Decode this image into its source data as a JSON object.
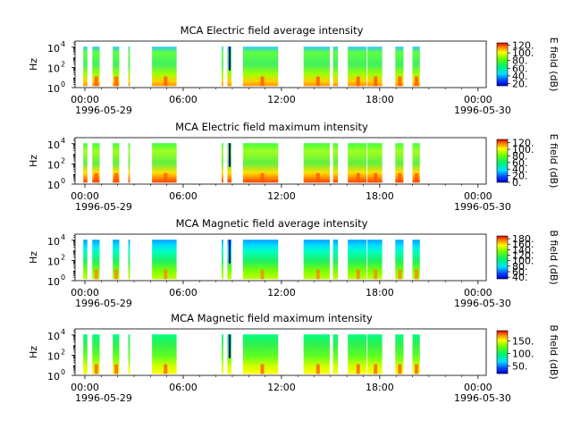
{
  "figure": {
    "x_tick_labels": [
      "00:00",
      "06:00",
      "12:00",
      "18:00",
      "00:00"
    ],
    "x_tick_hours": [
      0,
      6,
      12,
      18,
      24
    ],
    "x_range_hours": [
      -0.6,
      24.5
    ],
    "date_start": "1996-05-29",
    "date_end": "1996-05-30"
  },
  "chart_data": [
    {
      "type": "heatmap",
      "title": "MCA  Electric field average intensity",
      "ylabel": "Hz",
      "y_ticks": {
        "base": [
          "10",
          "10",
          "10"
        ],
        "exp": [
          "0",
          "2",
          "4"
        ]
      },
      "ylim_log10": [
        0,
        4.6
      ],
      "colorbar_label": "E field (dB)",
      "colorbar_ticks": [
        "20.",
        "40.",
        "60.",
        "80.",
        "100.",
        "120."
      ],
      "colorbar_range": [
        14,
        126
      ],
      "data_segments_hours": [
        [
          -0.1,
          0.15
        ],
        [
          0.45,
          0.9
        ],
        [
          1.7,
          2.1
        ],
        [
          2.65,
          2.75
        ],
        [
          4.1,
          5.6
        ],
        [
          8.35,
          8.45
        ],
        [
          8.7,
          8.95
        ],
        [
          9.65,
          11.8
        ],
        [
          13.35,
          14.95
        ],
        [
          15.15,
          15.45
        ],
        [
          16.05,
          17.2
        ],
        [
          17.25,
          18.15
        ],
        [
          18.95,
          19.45
        ],
        [
          20.0,
          20.45
        ]
      ]
    },
    {
      "type": "heatmap",
      "title": "MCA  Electric field maximum intensity",
      "ylabel": "Hz",
      "y_ticks": {
        "base": [
          "10",
          "10",
          "10"
        ],
        "exp": [
          "0",
          "2",
          "4"
        ]
      },
      "ylim_log10": [
        0,
        4.6
      ],
      "colorbar_label": "E field (dB)",
      "colorbar_ticks": [
        "0.",
        "20.",
        "40.",
        "60.",
        "80.",
        "100.",
        "120."
      ],
      "colorbar_range": [
        0,
        130
      ],
      "data_segments_hours": [
        [
          -0.1,
          0.15
        ],
        [
          0.45,
          0.9
        ],
        [
          1.7,
          2.1
        ],
        [
          2.65,
          2.75
        ],
        [
          4.1,
          5.6
        ],
        [
          8.35,
          8.45
        ],
        [
          8.7,
          8.95
        ],
        [
          9.65,
          11.8
        ],
        [
          13.35,
          14.95
        ],
        [
          15.15,
          15.45
        ],
        [
          16.05,
          17.2
        ],
        [
          17.25,
          18.15
        ],
        [
          18.95,
          19.45
        ],
        [
          20.0,
          20.45
        ]
      ]
    },
    {
      "type": "heatmap",
      "title": "MCA  Magnetic field average intensity",
      "ylabel": "Hz",
      "y_ticks": {
        "base": [
          "10",
          "10",
          "10"
        ],
        "exp": [
          "0",
          "2",
          "4"
        ]
      },
      "ylim_log10": [
        0,
        4.6
      ],
      "colorbar_label": "B field (dB)",
      "colorbar_ticks": [
        "40.",
        "60.",
        "80.",
        "100.",
        "120.",
        "140.",
        "160.",
        "180."
      ],
      "colorbar_range": [
        34,
        190
      ],
      "data_segments_hours": [
        [
          -0.1,
          0.15
        ],
        [
          0.45,
          0.9
        ],
        [
          1.7,
          2.1
        ],
        [
          2.65,
          2.75
        ],
        [
          4.1,
          5.6
        ],
        [
          8.35,
          8.45
        ],
        [
          8.7,
          8.95
        ],
        [
          9.65,
          11.8
        ],
        [
          13.35,
          14.95
        ],
        [
          15.15,
          15.45
        ],
        [
          16.05,
          17.2
        ],
        [
          17.25,
          18.15
        ],
        [
          18.95,
          19.45
        ],
        [
          20.0,
          20.45
        ]
      ]
    },
    {
      "type": "heatmap",
      "title": "MCA  Magnetic field maximum intensity",
      "ylabel": "Hz",
      "y_ticks": {
        "base": [
          "10",
          "10",
          "10"
        ],
        "exp": [
          "0",
          "2",
          "4"
        ]
      },
      "ylim_log10": [
        0,
        4.6
      ],
      "colorbar_label": "B field (dB)",
      "colorbar_ticks": [
        "50.",
        "100.",
        "150."
      ],
      "colorbar_range": [
        20,
        190
      ],
      "data_segments_hours": [
        [
          -0.1,
          0.15
        ],
        [
          0.45,
          0.9
        ],
        [
          1.7,
          2.1
        ],
        [
          2.65,
          2.75
        ],
        [
          4.1,
          5.6
        ],
        [
          8.35,
          8.45
        ],
        [
          8.7,
          8.95
        ],
        [
          9.65,
          11.8
        ],
        [
          13.35,
          14.95
        ],
        [
          15.15,
          15.45
        ],
        [
          16.05,
          17.2
        ],
        [
          17.25,
          18.15
        ],
        [
          18.95,
          19.45
        ],
        [
          20.0,
          20.45
        ]
      ]
    }
  ]
}
